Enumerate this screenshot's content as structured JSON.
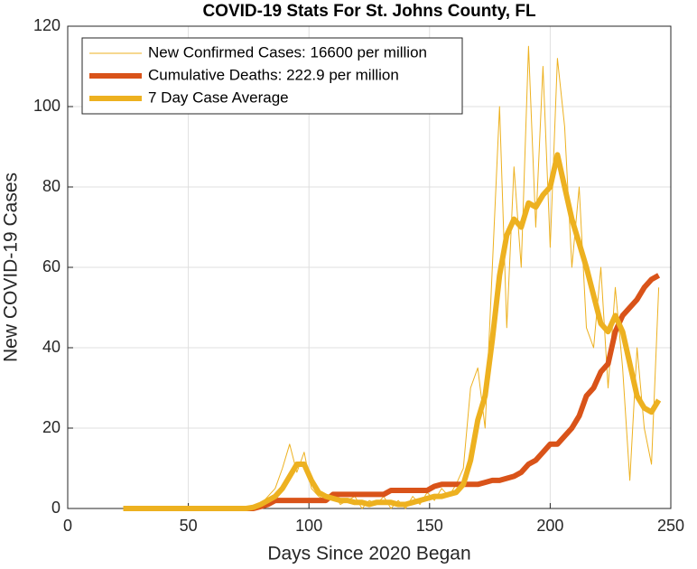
{
  "chart_data": {
    "type": "line",
    "title": "COVID-19 Stats For St. Johns County, FL",
    "x_label": "Days Since 2020 Began",
    "y_label": "New COVID-19 Cases",
    "x": [
      23,
      26,
      29,
      32,
      35,
      38,
      41,
      44,
      47,
      50,
      53,
      56,
      59,
      62,
      65,
      68,
      71,
      74,
      77,
      80,
      83,
      86,
      89,
      92,
      95,
      98,
      101,
      104,
      107,
      110,
      113,
      116,
      119,
      122,
      125,
      128,
      131,
      134,
      137,
      140,
      143,
      146,
      149,
      152,
      155,
      158,
      161,
      164,
      167,
      170,
      173,
      176,
      179,
      182,
      185,
      188,
      191,
      194,
      197,
      200,
      203,
      206,
      209,
      212,
      215,
      218,
      221,
      224,
      227,
      230,
      233,
      236,
      239,
      242,
      245
    ],
    "series": [
      {
        "name": "New Confirmed Cases: 16600 per million",
        "color": "#EDB120",
        "width": 1,
        "values": [
          0,
          0,
          0,
          0,
          0,
          0,
          0,
          0,
          0,
          0,
          0,
          0,
          0,
          0,
          0,
          0,
          0,
          0,
          0,
          1,
          3,
          5,
          10,
          16,
          9,
          14,
          5,
          3,
          2,
          4,
          1,
          2,
          3,
          0,
          2,
          1,
          3,
          0,
          2,
          0,
          3,
          1,
          4,
          2,
          5,
          3,
          6,
          10,
          30,
          35,
          20,
          60,
          100,
          45,
          85,
          60,
          115,
          70,
          110,
          65,
          112,
          95,
          60,
          80,
          45,
          40,
          60,
          30,
          55,
          35,
          7,
          40,
          20,
          11,
          55
        ]
      },
      {
        "name": "Cumulative Deaths: 222.9 per million",
        "color": "#D95319",
        "width": 6,
        "values": [
          0,
          0,
          0,
          0,
          0,
          0,
          0,
          0,
          0,
          0,
          0,
          0,
          0,
          0,
          0,
          0,
          0,
          0,
          0,
          0.5,
          1,
          2,
          2,
          2,
          2,
          2,
          2,
          2,
          2,
          3.5,
          3.5,
          3.5,
          3.5,
          3.5,
          3.5,
          3.5,
          3.5,
          4.5,
          4.5,
          4.5,
          4.5,
          4.5,
          4.5,
          5.5,
          6,
          6,
          6,
          6,
          6,
          6,
          6.5,
          7,
          7,
          7.5,
          8,
          9,
          11,
          12,
          14,
          16,
          16,
          18,
          20,
          23,
          28,
          30,
          34,
          36,
          44,
          48,
          50,
          52,
          55,
          57,
          58
        ]
      },
      {
        "name": "7 Day Case Average",
        "color": "#EDB120",
        "width": 6,
        "values": [
          0,
          0,
          0,
          0,
          0,
          0,
          0,
          0,
          0,
          0,
          0,
          0,
          0,
          0,
          0,
          0,
          0,
          0,
          0.3,
          1,
          2,
          3,
          5,
          8,
          11,
          11,
          7,
          4,
          3,
          2.5,
          2,
          2,
          1.5,
          1.5,
          1,
          1.5,
          1.5,
          1.5,
          1,
          1,
          1.5,
          2,
          2.5,
          3,
          3,
          3.5,
          4,
          6,
          12,
          22,
          28,
          42,
          58,
          68,
          72,
          70,
          76,
          75,
          78,
          80,
          88,
          80,
          72,
          66,
          60,
          53,
          46,
          44,
          48,
          44,
          36,
          28,
          25,
          24,
          27
        ]
      }
    ],
    "xlim": [
      0,
      250
    ],
    "xticks": [
      0,
      50,
      100,
      150,
      200,
      250
    ],
    "ylim": [
      0,
      120
    ],
    "yticks": [
      0,
      20,
      40,
      60,
      80,
      100,
      120
    ],
    "grid": true,
    "legend": "upper-left"
  }
}
